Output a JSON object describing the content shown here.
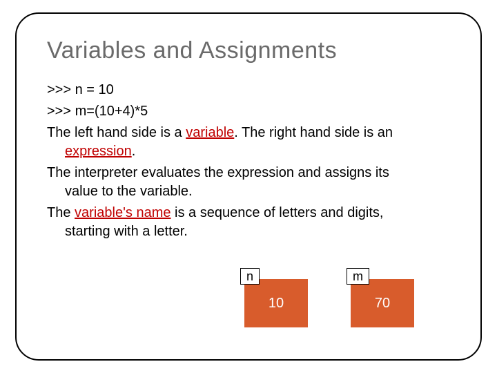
{
  "slide": {
    "title": "Variables and Assignments",
    "code_line1": ">>> n = 10",
    "code_line2": ">>> m=(10+4)*5",
    "para1_a": "The left hand side is a ",
    "para1_var": "variable",
    "para1_b": ". The right hand side is an ",
    "para1_expr": "expression",
    "para1_c": ".",
    "para2": "The interpreter evaluates the expression and assigns its value to the variable.",
    "para3_a": "The ",
    "para3_name": "variable's name",
    "para3_b": " is a sequence of letters and digits, starting with a letter."
  },
  "boxes": [
    {
      "label": "n",
      "value": "10"
    },
    {
      "label": "m",
      "value": "70"
    }
  ],
  "style": {
    "title_color": "#6a6a6a",
    "title_fontsize": 34,
    "body_fontsize": 20,
    "underline_color": "#c00000",
    "box_fill": "#d85c2c",
    "box_text_color": "#ffffff",
    "label_border": "#000000",
    "label_bg": "#ffffff",
    "frame_border": "#000000",
    "frame_radius": 34,
    "slide_width": 720,
    "slide_height": 540
  }
}
